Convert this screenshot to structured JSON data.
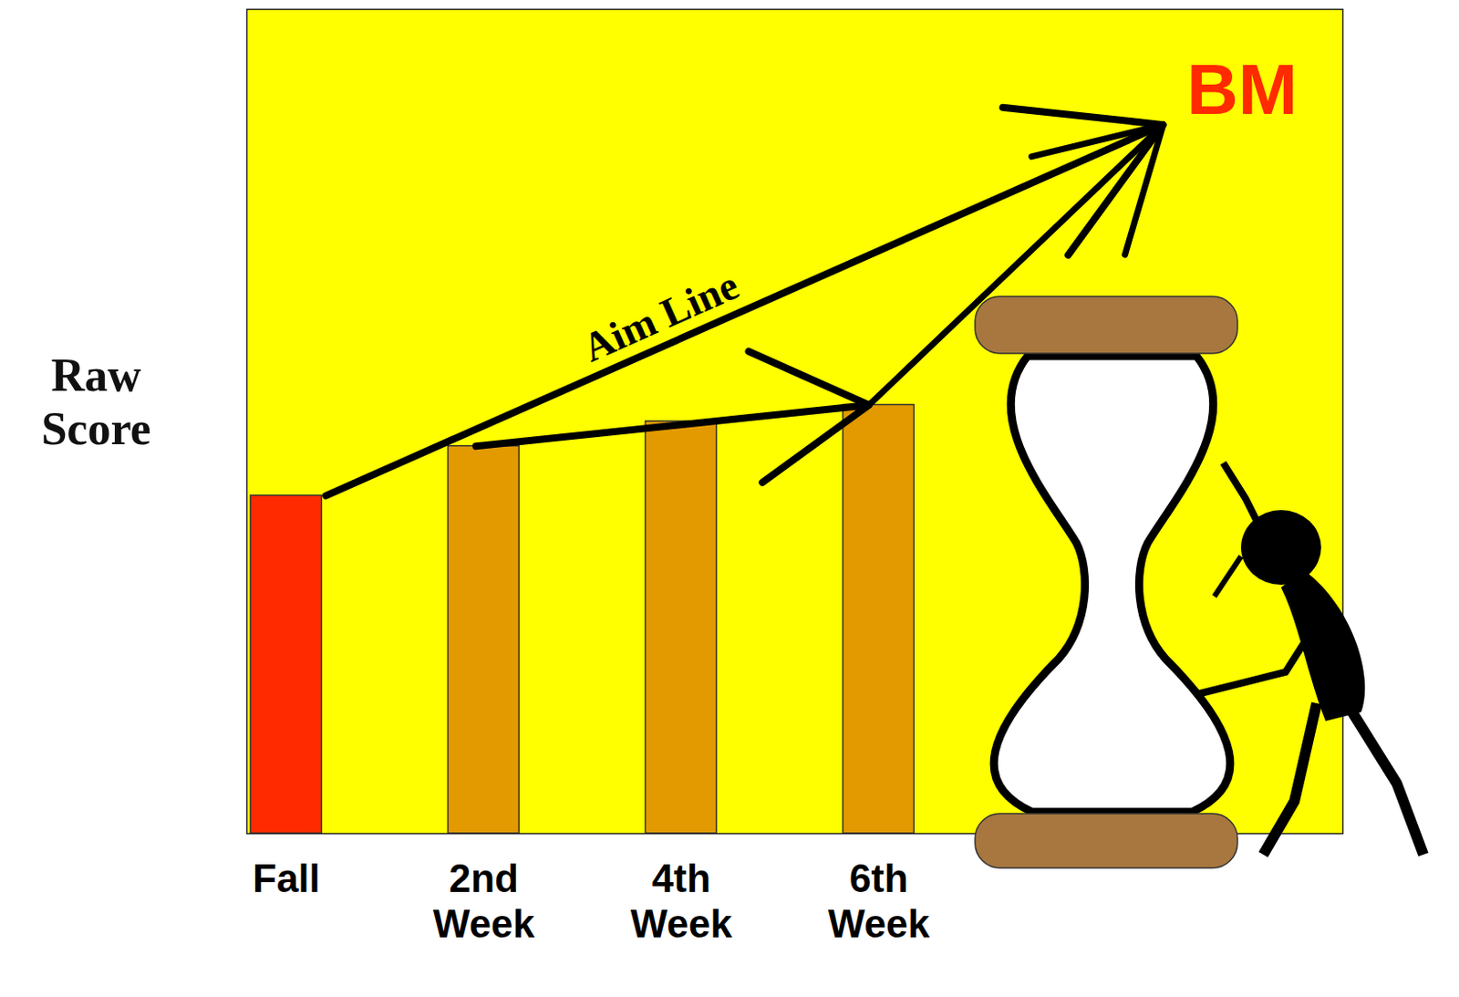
{
  "chart_data": {
    "type": "bar",
    "categories": [
      "Fall",
      "2nd Week",
      "4th Week",
      "6th Week"
    ],
    "values": [
      41,
      47,
      50,
      52
    ],
    "colors": [
      "#ff2a00",
      "#e39a00",
      "#e39a00",
      "#e39a00"
    ],
    "ylabel": "Raw Score",
    "ylim": [
      0,
      100
    ],
    "yticks": [],
    "tick_labels": "x",
    "annotations": [
      {
        "text": "Aim Line"
      }
    ],
    "benchmark": {
      "label": "BM",
      "value": 86
    }
  }
}
